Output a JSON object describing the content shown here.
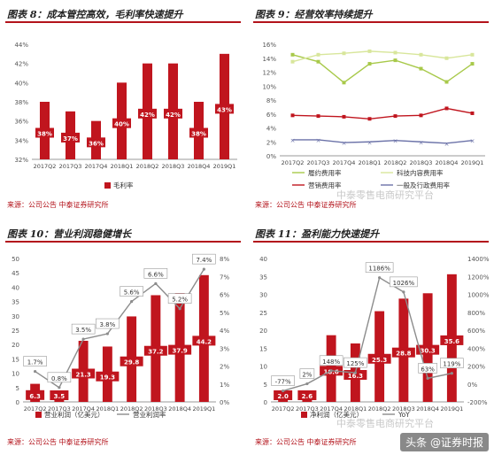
{
  "panels": [
    {
      "title": "图表 8：成本管控高效，毛利率快速提升",
      "source": "来源：公司公告 中泰证券研究所"
    },
    {
      "title": "图表 9：经营效率持续提升",
      "source": "来源：公司公告 中泰证券研究所"
    },
    {
      "title": "图表 10：营业利润稳健增长",
      "source": "来源：公司公告 中泰证券研究所"
    },
    {
      "title": "图表 11：盈利能力快速提升",
      "source": "来源：公司公告 中泰证券研究所"
    }
  ],
  "watermark": "中泰零售电商研究平台",
  "badge": "头条 @证券时报",
  "colors": {
    "bar": "#c0151e",
    "label_bg": "#c0151e",
    "line_gray": "#8c8c8c",
    "title_line": "#b3131b"
  },
  "chart_data": [
    {
      "type": "bar",
      "categories": [
        "2017Q2",
        "2017Q3",
        "2017Q4",
        "2018Q1",
        "2018Q2",
        "2018Q3",
        "2018Q4",
        "2019Q1"
      ],
      "series": [
        {
          "name": "毛利率",
          "values": [
            38,
            37,
            36,
            40,
            42,
            42,
            38,
            43
          ],
          "labels": [
            "38%",
            "37%",
            "36%",
            "40%",
            "42%",
            "42%",
            "38%",
            "43%"
          ]
        }
      ],
      "ylim": [
        32,
        44
      ],
      "yticks": [
        "32%",
        "34%",
        "36%",
        "38%",
        "40%",
        "42%",
        "44%"
      ],
      "legend": "bottom"
    },
    {
      "type": "line",
      "categories": [
        "2017Q2",
        "2017Q3",
        "2017Q4",
        "2018Q1",
        "2018Q2",
        "2018Q3",
        "2018Q4",
        "2019Q1"
      ],
      "series": [
        {
          "name": "履约费用率",
          "color": "#a8c94a",
          "values": [
            14.5,
            13.5,
            10.5,
            13.2,
            13.7,
            12.5,
            10.6,
            13.2
          ]
        },
        {
          "name": "科技内容费用率",
          "color": "#d8e69b",
          "values": [
            13.5,
            14.5,
            14.7,
            15.0,
            14.8,
            14.5,
            14.0,
            14.5
          ]
        },
        {
          "name": "营销费用率",
          "color": "#c0151e",
          "values": [
            5.8,
            5.7,
            5.6,
            5.3,
            5.7,
            5.8,
            6.8,
            6.1
          ]
        },
        {
          "name": "一般及行政费用率",
          "color": "#6b72a8",
          "values": [
            2.3,
            2.3,
            1.9,
            2.0,
            2.2,
            2.0,
            1.8,
            2.2
          ]
        }
      ],
      "ylim": [
        0,
        16
      ],
      "yticks": [
        "0%",
        "2%",
        "4%",
        "6%",
        "8%",
        "10%",
        "12%",
        "14%",
        "16%"
      ],
      "legend": "bottom"
    },
    {
      "type": "bar",
      "categories": [
        "2017Q2",
        "2017Q3",
        "2017Q4",
        "2018Q1",
        "2018Q2",
        "2018Q3",
        "2018Q4",
        "2019Q1"
      ],
      "series": [
        {
          "name": "营业利润（亿美元）",
          "values": [
            6.3,
            3.5,
            21.3,
            19.3,
            29.8,
            37.2,
            37.9,
            44.2
          ],
          "labels": [
            "6.3",
            "3.5",
            "21.3",
            "19.3",
            "29.8",
            "37.2",
            "37.9",
            "44.2"
          ]
        },
        {
          "name": "营业利润率",
          "line": true,
          "values": [
            1.7,
            0.8,
            3.5,
            3.8,
            5.6,
            6.6,
            5.2,
            7.4
          ],
          "labels": [
            "1.7%",
            "0.8%",
            "3.5%",
            "3.8%",
            "5.6%",
            "6.6%",
            "5.2%",
            "7.4%"
          ]
        }
      ],
      "ylim": [
        0,
        50
      ],
      "yticks": [
        "0",
        "5",
        "10",
        "15",
        "20",
        "25",
        "30",
        "35",
        "40",
        "45",
        "50"
      ],
      "y2lim": [
        0,
        8
      ],
      "y2ticks": [
        "0%",
        "1%",
        "2%",
        "3%",
        "4%",
        "5%",
        "6%",
        "7%",
        "8%"
      ],
      "legend": "bottom"
    },
    {
      "type": "bar",
      "categories": [
        "2017Q2",
        "2017Q3",
        "2017Q4",
        "2018Q1",
        "2018Q2",
        "2018Q3",
        "2018Q4",
        "2019Q1"
      ],
      "series": [
        {
          "name": "净利润（亿美元）",
          "values": [
            2.0,
            2.6,
            18.6,
            16.3,
            25.3,
            28.8,
            30.3,
            35.6
          ],
          "labels": [
            "2.0",
            "2.6",
            "18.6",
            "16.3",
            "25.3",
            "28.8",
            "30.3",
            "35.6"
          ]
        },
        {
          "name": "YoY",
          "line": true,
          "values": [
            -77,
            2,
            148,
            125,
            1186,
            1026,
            63,
            119
          ],
          "labels": [
            "-77%",
            "2%",
            "148%",
            "125%",
            "1186%",
            "1026%",
            "63%",
            "119%"
          ]
        }
      ],
      "ylim": [
        0,
        40
      ],
      "yticks": [
        "0",
        "5",
        "10",
        "15",
        "20",
        "25",
        "30",
        "35",
        "40"
      ],
      "y2lim": [
        -200,
        1400
      ],
      "y2ticks": [
        "-200%",
        "0%",
        "200%",
        "400%",
        "600%",
        "800%",
        "1000%",
        "1200%",
        "1400%"
      ],
      "legend": "bottom"
    }
  ]
}
